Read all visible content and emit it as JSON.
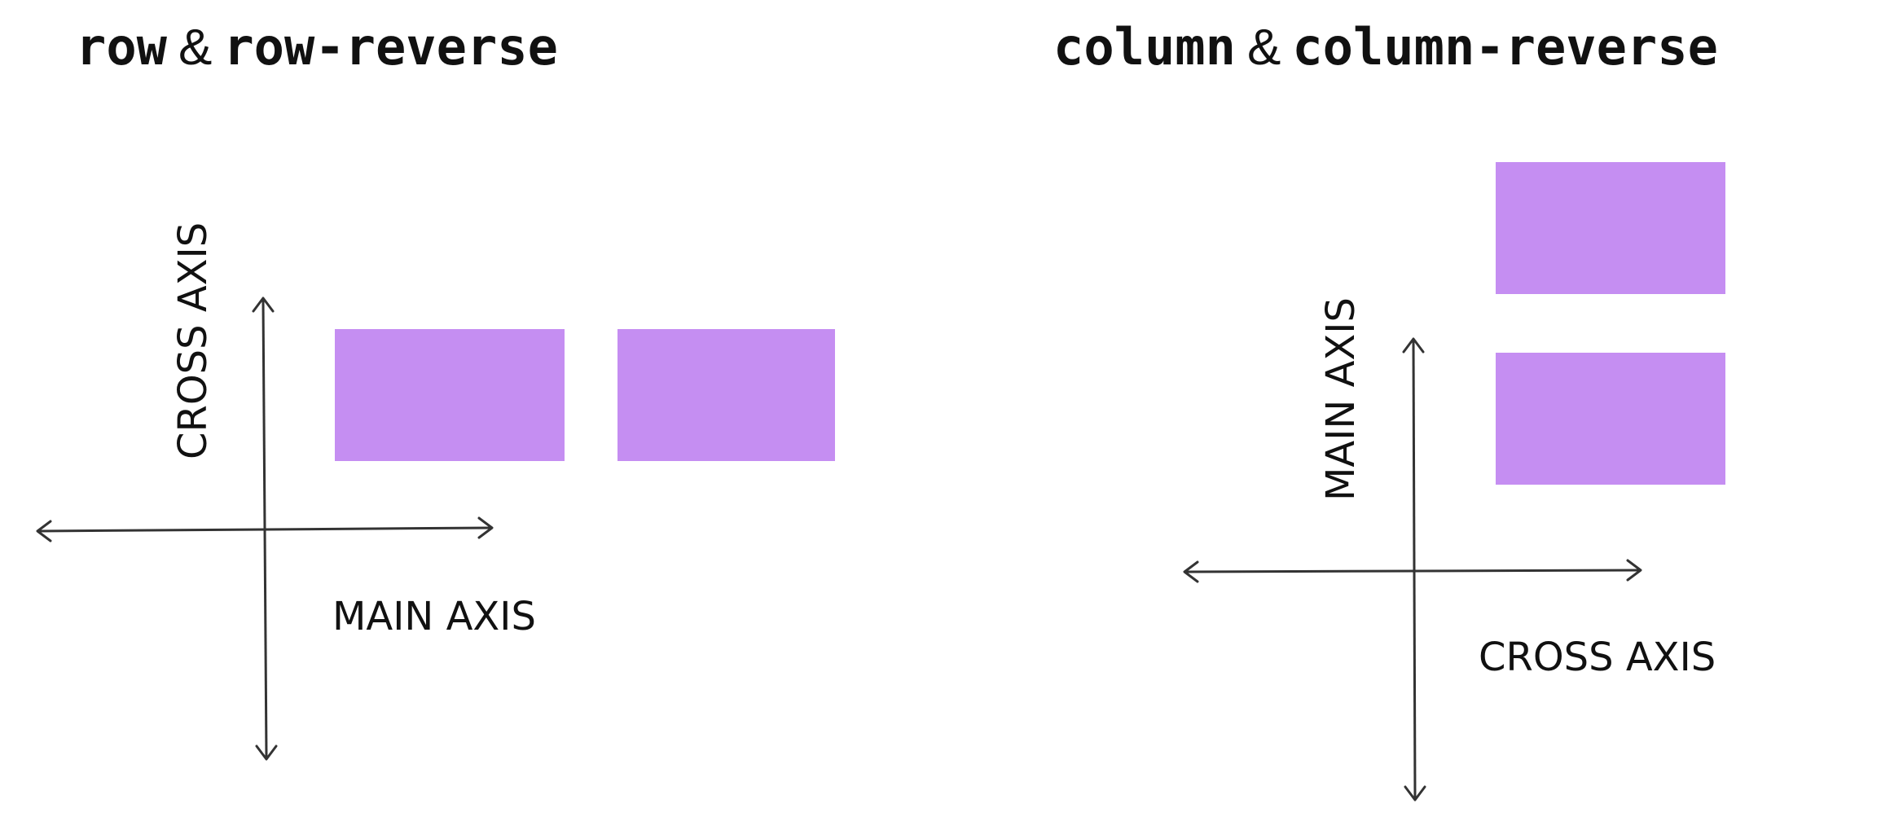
{
  "panels": {
    "row": {
      "title_a": "row",
      "title_joiner": "&",
      "title_b": "row-reverse",
      "horizontal_axis_label": "MAIN AXIS",
      "vertical_axis_label": "CROSS AXIS",
      "items_count": 2
    },
    "column": {
      "title_a": "column",
      "title_joiner": "&",
      "title_b": "column-reverse",
      "horizontal_axis_label": "CROSS AXIS",
      "vertical_axis_label": "MAIN AXIS",
      "items_count": 2
    }
  },
  "colors": {
    "item_fill": "#c58ef2",
    "axis_stroke": "#333333",
    "text": "#111111",
    "background": "#ffffff"
  }
}
